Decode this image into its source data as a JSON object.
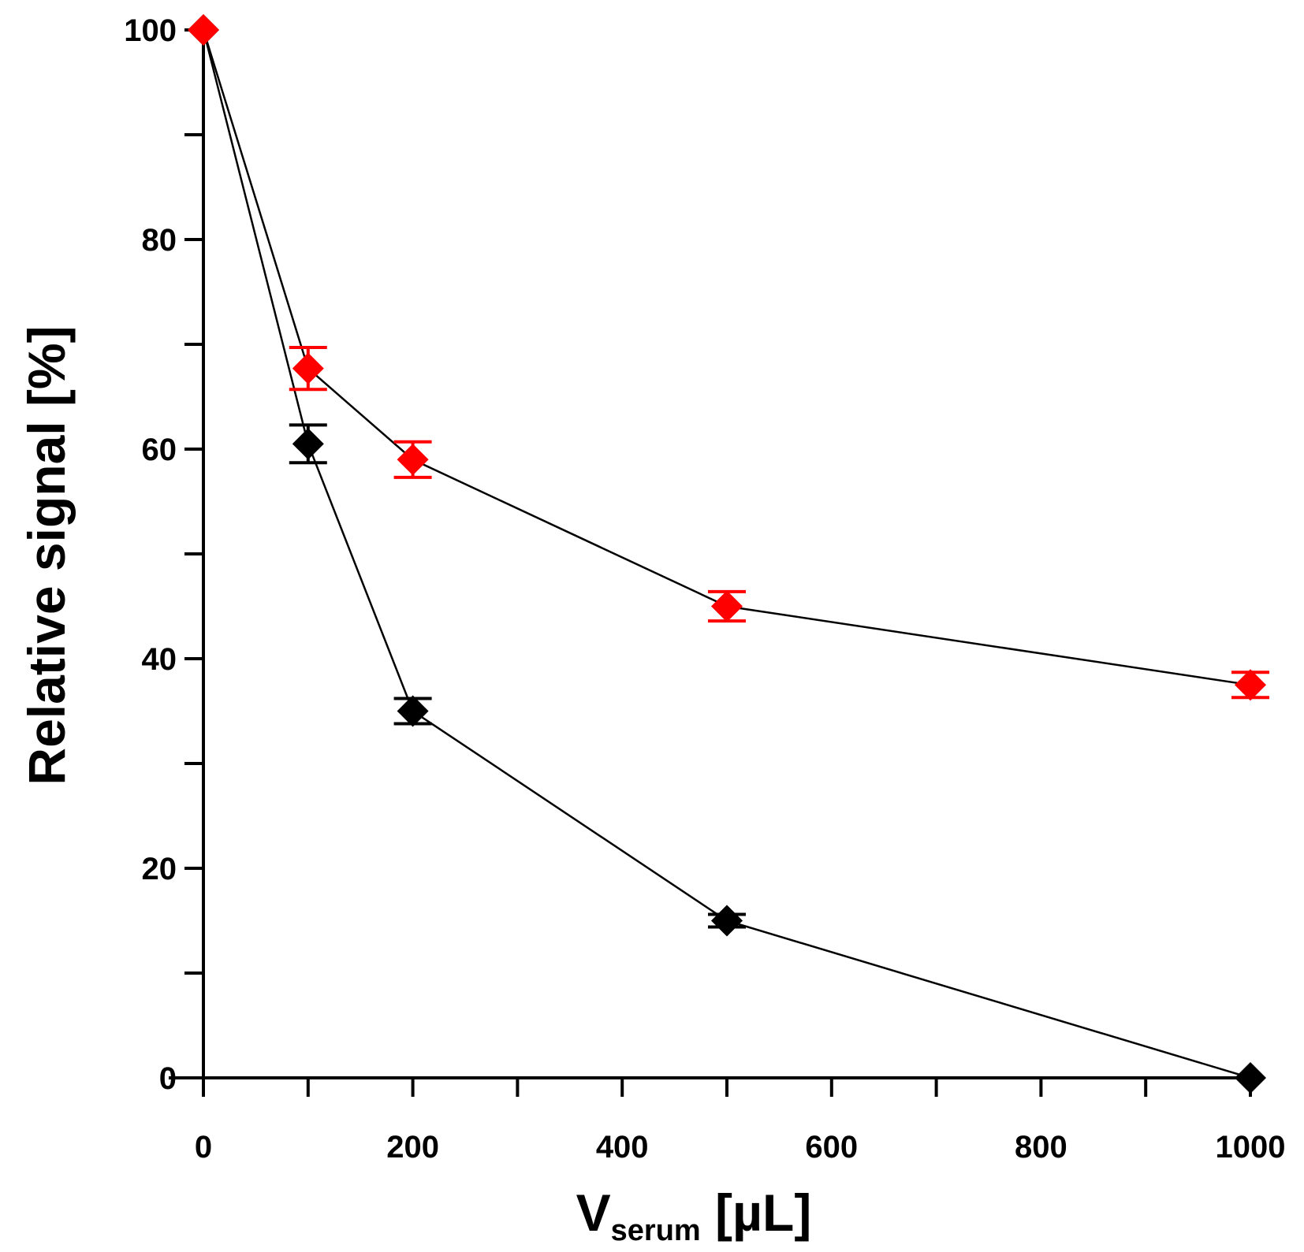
{
  "chart_data": {
    "type": "line",
    "title": "",
    "xlabel": {
      "main": "V",
      "sub": "serum",
      "unit": " [µL]"
    },
    "ylabel": "Relative signal [%]",
    "xlim": [
      0,
      1000
    ],
    "ylim": [
      0,
      100
    ],
    "x_ticks": [
      0,
      200,
      400,
      600,
      800,
      1000
    ],
    "x_minor_ticks": [
      100,
      300,
      500,
      700,
      900
    ],
    "y_ticks": [
      0,
      20,
      40,
      60,
      80,
      100
    ],
    "y_minor_ticks": [
      10,
      30,
      50,
      70,
      90
    ],
    "grid": false,
    "series": [
      {
        "name": "black series",
        "color": "#000000",
        "marker": "diamond",
        "x": [
          0,
          100,
          200,
          500,
          1000
        ],
        "y": [
          100,
          60.5,
          35,
          15,
          0
        ],
        "err": [
          0,
          1.8,
          1.2,
          0.6,
          0
        ]
      },
      {
        "name": "red series",
        "color": "#ff0000",
        "marker": "diamond",
        "x": [
          0,
          100,
          200,
          500,
          1000
        ],
        "y": [
          100,
          67.7,
          59,
          45,
          37.5
        ],
        "err": [
          0,
          2.0,
          1.7,
          1.4,
          1.2
        ]
      }
    ]
  }
}
